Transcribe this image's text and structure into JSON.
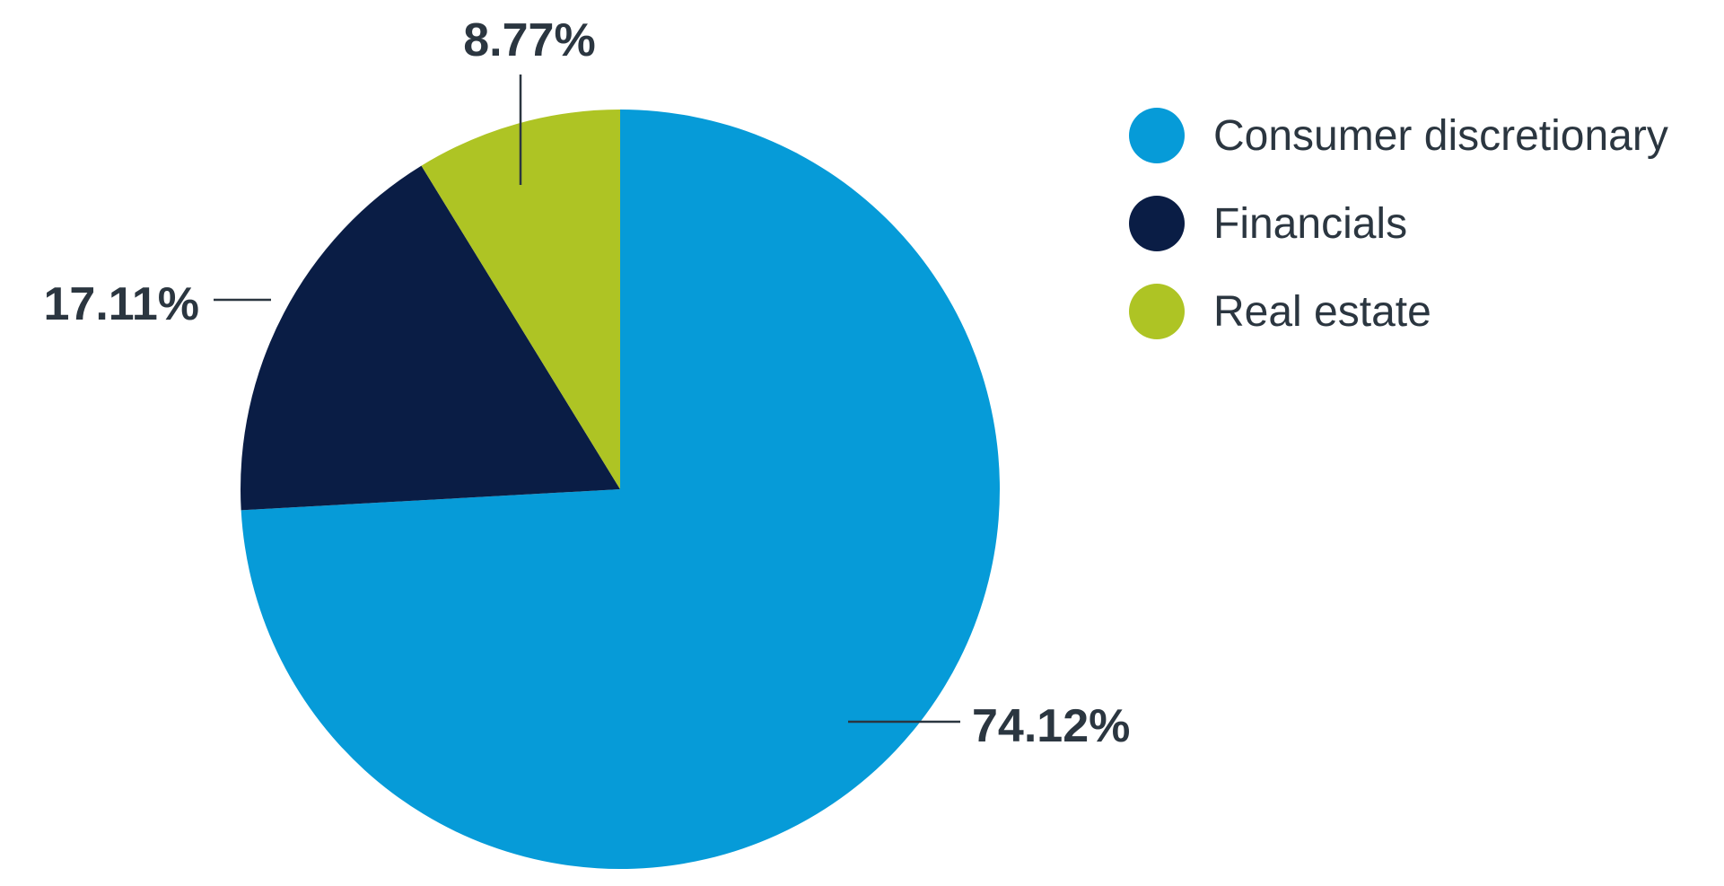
{
  "chart_data": {
    "type": "pie",
    "title": "",
    "start_angle_deg": 0,
    "direction": "clockwise",
    "legend_position": "right",
    "slices": [
      {
        "label": "Consumer discretionary",
        "value": 74.12,
        "display": "74.12%",
        "color": "#069bd8"
      },
      {
        "label": "Financials",
        "value": 17.11,
        "display": "17.11%",
        "color": "#0a1d45"
      },
      {
        "label": "Real estate",
        "value": 8.77,
        "display": "8.77%",
        "color": "#aec424"
      }
    ]
  },
  "legend": {
    "items": [
      {
        "label": "Consumer discretionary",
        "color": "#069bd8"
      },
      {
        "label": "Financials",
        "color": "#0a1d45"
      },
      {
        "label": "Real estate",
        "color": "#aec424"
      }
    ]
  }
}
